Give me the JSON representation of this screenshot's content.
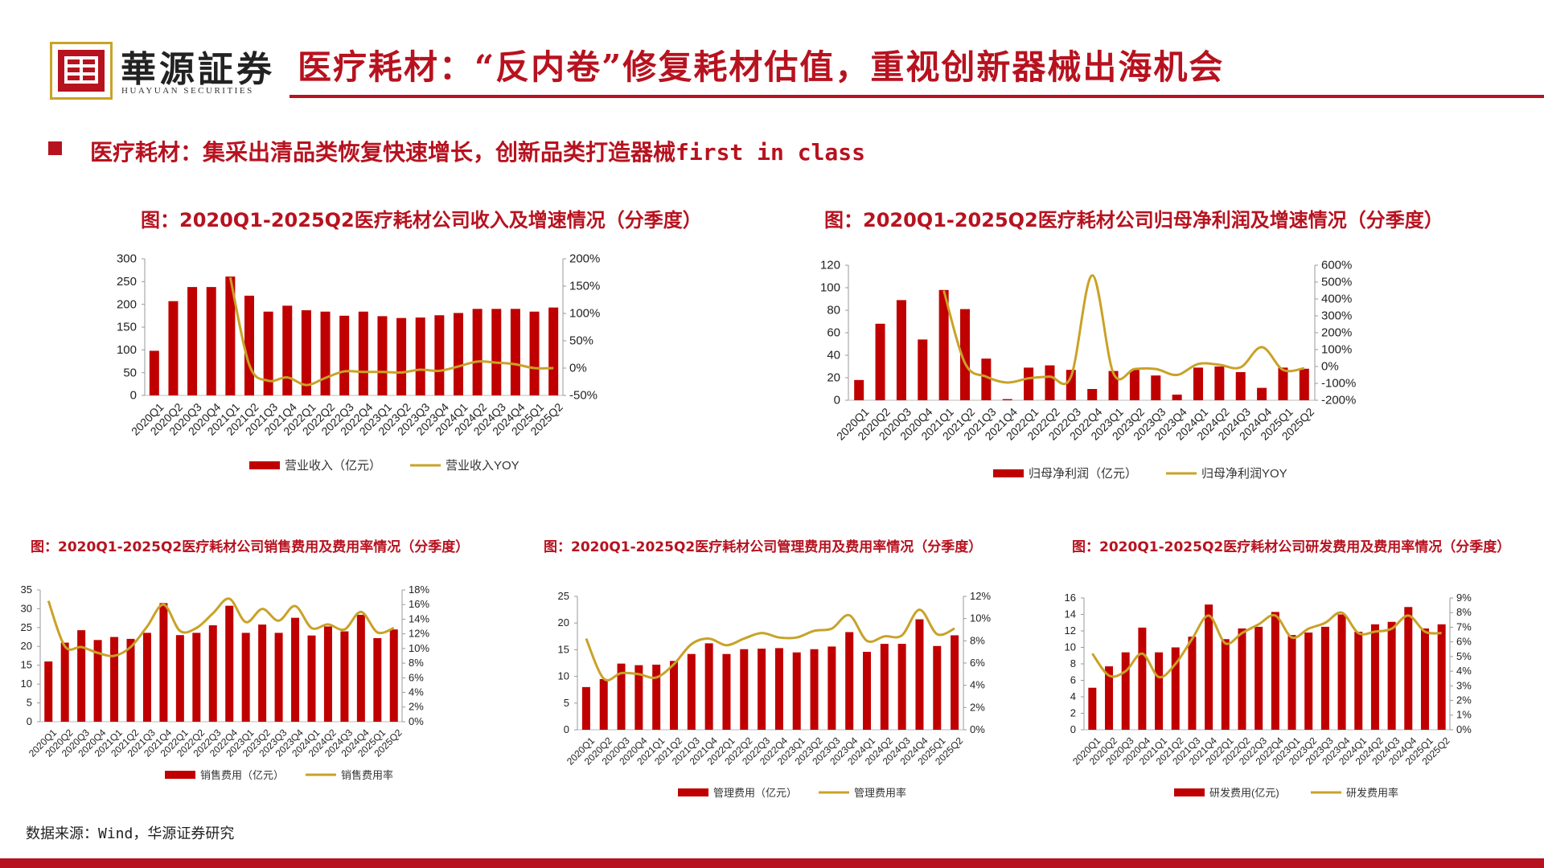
{
  "header": {
    "logo_cn": "華源証券",
    "logo_en": "HUAYUAN SECURITIES",
    "title": "医疗耗材：“反内卷”修复耗材估值，重视创新器械出海机会"
  },
  "subtitle": "医疗耗材：集采出清品类恢复快速增长，创新品类打造器械first in class",
  "source": "数据来源：Wind，华源证券研究",
  "colors": {
    "bar": "#C00000",
    "line": "#C9A227",
    "accent": "#B7121F"
  },
  "chart_data": [
    {
      "type": "bar",
      "title": "图：2020Q1-2025Q2医疗耗材公司收入及增速情况（分季度）",
      "categories": [
        "2020Q1",
        "2020Q2",
        "2020Q3",
        "2020Q4",
        "2021Q1",
        "2021Q2",
        "2021Q3",
        "2021Q4",
        "2022Q1",
        "2022Q2",
        "2022Q3",
        "2022Q4",
        "2023Q1",
        "2023Q2",
        "2023Q3",
        "2023Q4",
        "2024Q1",
        "2024Q2",
        "2024Q3",
        "2024Q4",
        "2025Q1",
        "2025Q2"
      ],
      "ylim": [
        0,
        300
      ],
      "yticks": [
        "0",
        "50",
        "100",
        "150",
        "200",
        "250",
        "300"
      ],
      "y2lim": [
        -50,
        200
      ],
      "y2ticks": [
        "-50%",
        "0%",
        "50%",
        "100%",
        "150%",
        "200%"
      ],
      "series": [
        {
          "name": "营业收入（亿元）",
          "kind": "bar",
          "axis": "left",
          "values": [
            98,
            207,
            238,
            238,
            261,
            219,
            184,
            197,
            187,
            184,
            175,
            184,
            174,
            170,
            171,
            176,
            181,
            190,
            190,
            190,
            184,
            193
          ]
        },
        {
          "name": "营业收入YOY",
          "kind": "line",
          "axis": "right",
          "values": [
            null,
            null,
            null,
            null,
            166,
            6,
            -23,
            -17,
            -31,
            -18,
            -6,
            -7,
            -7,
            -8,
            -3,
            -5,
            3,
            12,
            10,
            7,
            0,
            0
          ]
        }
      ],
      "legend_position": "bottom"
    },
    {
      "type": "bar",
      "title": "图：2020Q1-2025Q2医疗耗材公司归母净利润及增速情况（分季度）",
      "categories": [
        "2020Q1",
        "2020Q2",
        "2020Q3",
        "2020Q4",
        "2021Q1",
        "2021Q2",
        "2021Q3",
        "2021Q4",
        "2022Q1",
        "2022Q2",
        "2022Q3",
        "2022Q4",
        "2023Q1",
        "2023Q2",
        "2023Q3",
        "2023Q4",
        "2024Q1",
        "2024Q2",
        "2024Q3",
        "2024Q4",
        "2025Q1",
        "2025Q2"
      ],
      "ylim": [
        0,
        120
      ],
      "yticks": [
        "0",
        "20",
        "40",
        "60",
        "80",
        "100",
        "120"
      ],
      "y2lim": [
        -200,
        600
      ],
      "y2ticks": [
        "-200%",
        "-100%",
        "0%",
        "100%",
        "200%",
        "300%",
        "400%",
        "500%",
        "600%"
      ],
      "series": [
        {
          "name": "归母净利润（亿元）",
          "kind": "bar",
          "axis": "left",
          "values": [
            18,
            68,
            89,
            54,
            98,
            81,
            37,
            1,
            29,
            31,
            27,
            10,
            26,
            27,
            22,
            5,
            29,
            30,
            25,
            11,
            29,
            28
          ]
        },
        {
          "name": "归母净利润YOY",
          "kind": "line",
          "axis": "right",
          "values": [
            null,
            null,
            null,
            null,
            450,
            20,
            -60,
            -95,
            -70,
            -60,
            -60,
            540,
            -40,
            -15,
            -15,
            -50,
            15,
            10,
            -5,
            115,
            -20,
            -10
          ]
        }
      ],
      "legend_position": "bottom"
    },
    {
      "type": "bar",
      "title": "图：2020Q1-2025Q2医疗耗材公司销售费用及费用率情况（分季度）",
      "categories": [
        "2020Q1",
        "2020Q2",
        "2020Q3",
        "2020Q4",
        "2021Q1",
        "2021Q2",
        "2021Q3",
        "2021Q4",
        "2022Q1",
        "2022Q2",
        "2022Q3",
        "2022Q4",
        "2023Q1",
        "2023Q2",
        "2023Q3",
        "2023Q4",
        "2024Q1",
        "2024Q2",
        "2024Q3",
        "2024Q4",
        "2025Q1",
        "2025Q2"
      ],
      "ylim": [
        0,
        35
      ],
      "yticks": [
        "0",
        "5",
        "10",
        "15",
        "20",
        "25",
        "30",
        "35"
      ],
      "y2lim": [
        0,
        18
      ],
      "y2ticks": [
        "0%",
        "2%",
        "4%",
        "6%",
        "8%",
        "10%",
        "12%",
        "14%",
        "16%",
        "18%"
      ],
      "series": [
        {
          "name": "销售费用（亿元）",
          "kind": "bar",
          "axis": "left",
          "values": [
            16,
            21,
            24.3,
            21.7,
            22.5,
            22,
            23.6,
            31.5,
            23,
            23.6,
            25.6,
            30.8,
            23.6,
            25.8,
            23.6,
            27.6,
            22.9,
            25.3,
            24,
            28.4,
            22.2,
            24.5
          ]
        },
        {
          "name": "销售费用率",
          "kind": "line",
          "axis": "right",
          "values": [
            16.5,
            10.3,
            10.2,
            9.4,
            9.0,
            10.2,
            13.0,
            16.0,
            12.4,
            12.8,
            14.8,
            16.8,
            13.6,
            15.4,
            13.8,
            15.8,
            12.8,
            13.3,
            12.6,
            15.0,
            12.2,
            12.8
          ]
        }
      ],
      "legend_position": "bottom"
    },
    {
      "type": "bar",
      "title": "图：2020Q1-2025Q2医疗耗材公司管理费用及费用率情况（分季度）",
      "categories": [
        "2020Q1",
        "2020Q2",
        "2020Q3",
        "2020Q4",
        "2021Q1",
        "2021Q2",
        "2021Q3",
        "2021Q4",
        "2022Q1",
        "2022Q2",
        "2022Q3",
        "2022Q4",
        "2023Q1",
        "2023Q2",
        "2023Q3",
        "2023Q4",
        "2024Q1",
        "2024Q2",
        "2024Q3",
        "2024Q4",
        "2025Q1",
        "2025Q2"
      ],
      "ylim": [
        0,
        25
      ],
      "yticks": [
        "0",
        "5",
        "10",
        "15",
        "20",
        "25"
      ],
      "y2lim": [
        0,
        12
      ],
      "y2ticks": [
        "0%",
        "2%",
        "4%",
        "6%",
        "8%",
        "10%",
        "12%"
      ],
      "series": [
        {
          "name": "管理费用（亿元）",
          "kind": "bar",
          "axis": "left",
          "values": [
            8,
            9.5,
            12.4,
            12.1,
            12.2,
            12.9,
            14.2,
            16.2,
            14.2,
            15.1,
            15.2,
            15.3,
            14.5,
            15.1,
            15.6,
            18.3,
            14.6,
            16.1,
            16.1,
            20.7,
            15.7,
            17.7
          ]
        },
        {
          "name": "管理费用率",
          "kind": "line",
          "axis": "right",
          "values": [
            8.2,
            4.6,
            5.1,
            5.0,
            4.7,
            5.9,
            7.7,
            8.2,
            7.6,
            8.2,
            8.7,
            8.3,
            8.3,
            8.9,
            9.1,
            10.3,
            8.0,
            8.4,
            8.5,
            10.8,
            8.6,
            9.1
          ]
        }
      ],
      "legend_position": "bottom"
    },
    {
      "type": "bar",
      "title": "图：2020Q1-2025Q2医疗耗材公司研发费用及费用率情况（分季度）",
      "categories": [
        "2020Q1",
        "2020Q2",
        "2020Q3",
        "2020Q4",
        "2021Q1",
        "2021Q2",
        "2021Q3",
        "2021Q4",
        "2022Q1",
        "2022Q2",
        "2022Q3",
        "2022Q4",
        "2023Q1",
        "2023Q2",
        "2023Q3",
        "2023Q4",
        "2024Q1",
        "2024Q2",
        "2024Q3",
        "2024Q4",
        "2025Q1",
        "2025Q2"
      ],
      "ylim": [
        0,
        16
      ],
      "yticks": [
        "0",
        "2",
        "4",
        "6",
        "8",
        "10",
        "12",
        "14",
        "16"
      ],
      "y2lim": [
        0,
        9
      ],
      "y2ticks": [
        "0%",
        "1%",
        "2%",
        "3%",
        "4%",
        "5%",
        "6%",
        "7%",
        "8%",
        "9%"
      ],
      "series": [
        {
          "name": "研发费用(亿元)",
          "kind": "bar",
          "axis": "left",
          "values": [
            5.1,
            7.7,
            9.4,
            12.4,
            9.4,
            10.0,
            11.3,
            15.2,
            11.0,
            12.3,
            12.5,
            14.3,
            11.5,
            11.8,
            12.5,
            14.0,
            11.9,
            12.8,
            13.1,
            14.9,
            12.3,
            12.8
          ]
        },
        {
          "name": "研发费用率",
          "kind": "line",
          "axis": "right",
          "values": [
            5.2,
            3.7,
            4.0,
            5.2,
            3.6,
            4.5,
            6.2,
            7.8,
            5.9,
            6.6,
            7.2,
            7.8,
            6.3,
            6.9,
            7.3,
            8.0,
            6.6,
            6.7,
            6.9,
            7.8,
            6.7,
            6.6
          ]
        }
      ],
      "legend_position": "bottom"
    }
  ]
}
